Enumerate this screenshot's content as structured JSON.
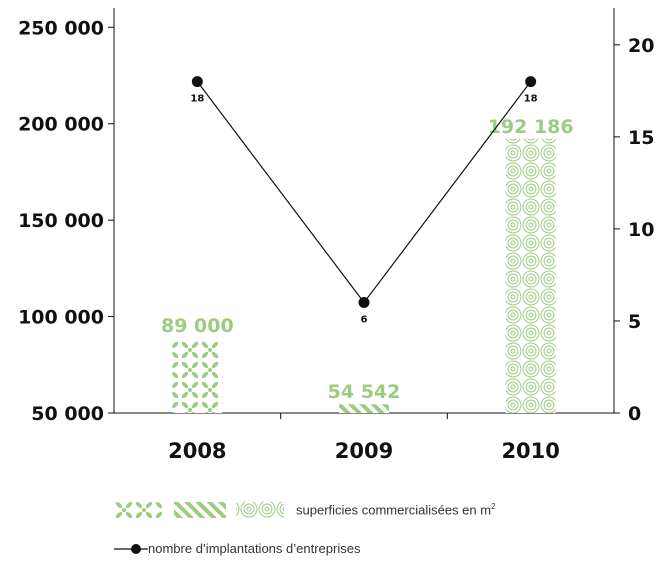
{
  "chart_data": {
    "type": "bar+line",
    "categories": [
      "2008",
      "2009",
      "2010"
    ],
    "bars": {
      "name": "superficies commercialisées en m",
      "name_sup": "2",
      "values": [
        89000,
        54542,
        192186
      ],
      "labels": [
        "89 000",
        "54 542",
        "192 186"
      ],
      "color": "#9ccc82"
    },
    "line": {
      "name": "nombre d’implantations d’entreprises",
      "values": [
        18,
        6,
        18
      ],
      "labels": [
        "18",
        "6",
        "18"
      ],
      "color": "#111111"
    },
    "left_axis": {
      "ylim": [
        50000,
        260000
      ],
      "ticks": [
        50000,
        100000,
        150000,
        200000,
        250000
      ],
      "tick_labels": [
        "50 000",
        "100 000",
        "150 000",
        "200 000",
        "250 000"
      ]
    },
    "right_axis": {
      "ylim": [
        0,
        22
      ],
      "ticks": [
        0,
        5,
        10,
        15,
        20
      ],
      "tick_labels": [
        "0",
        "5",
        "10",
        "15",
        "20"
      ]
    },
    "grid": false,
    "legend_position": "bottom"
  }
}
